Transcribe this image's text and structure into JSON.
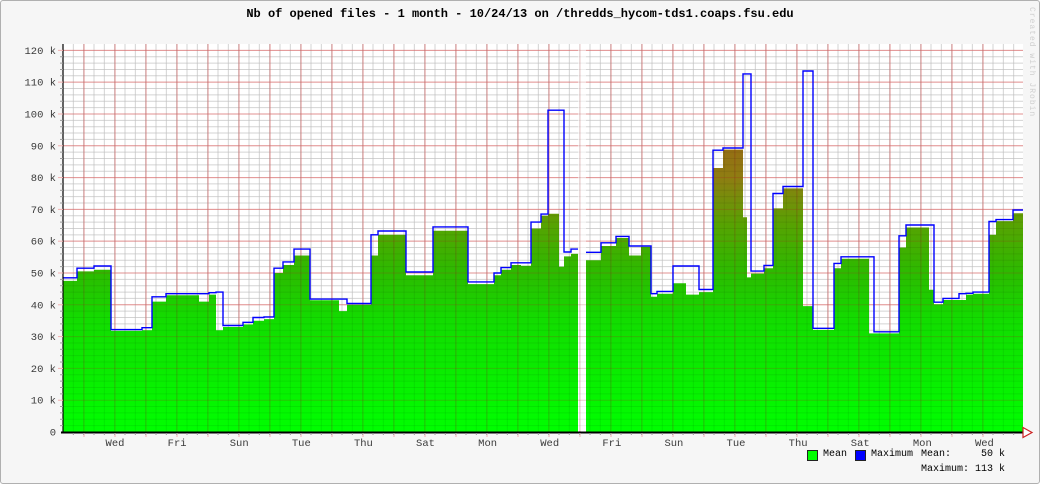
{
  "title": "Nb of opened files - 1 month - 10/24/13 on /thredds_hycom-tds1.coaps.fsu.edu",
  "watermark": "Created with JRobin",
  "legend": {
    "mean_label": "Mean",
    "max_label": "Maximum",
    "mean_caption": "Mean:",
    "mean_value": "50 k",
    "max_caption": "Maximum:",
    "max_value": "113 k"
  },
  "colors": {
    "frame_bg": "#f6f6f6",
    "plot_bg": "#ffffff",
    "minor_grid": "#e4e4e4",
    "major_grid": "#f2b0b0",
    "mean_fill_base": "#00ff00",
    "max_line": "#0000ff",
    "axis": "#000000",
    "arrow": "#cc2222",
    "tick_text": "#3a3a3a"
  },
  "chart_data": {
    "type": "area",
    "title": "Nb of opened files - 1 month - 10/24/13 on /thredds_hycom-tds1.coaps.fsu.edu",
    "xlabel": "",
    "ylabel": "",
    "legend_position": "bottom-right",
    "grid": true,
    "y_axis": {
      "unit": "k files",
      "max_k": 122,
      "major_step_k": 10,
      "minor_step_k": 2,
      "ticks": [
        "0",
        "10 k",
        "20 k",
        "30 k",
        "40 k",
        "50 k",
        "60 k",
        "70 k",
        "80 k",
        "90 k",
        "100 k",
        "110 k",
        "120 k"
      ]
    },
    "x_axis": {
      "span": "1 month (30 days)",
      "labels": [
        "Wed",
        "Fri",
        "Sun",
        "Tue",
        "Thu",
        "Sat",
        "Mon",
        "Wed",
        "Fri",
        "Sun",
        "Tue",
        "Thu",
        "Sat",
        "Mon",
        "Wed"
      ],
      "label_every_days": 2,
      "minor_tick_hours": 8
    },
    "series": [
      {
        "name": "Mean",
        "style": "gradient-area",
        "color": "#00ff00"
      },
      {
        "name": "Maximum",
        "style": "step-line",
        "color": "#0000ff"
      }
    ],
    "summary": {
      "mean_k": 50,
      "maximum_k": 113
    },
    "gradient_stops": [
      [
        122,
        "#9f5f0a"
      ],
      [
        95,
        "#996414"
      ],
      [
        80,
        "#8f7d12"
      ],
      [
        65,
        "#56a302"
      ],
      [
        50,
        "#2cbb00"
      ],
      [
        35,
        "#12dd00"
      ],
      [
        0,
        "#00ff00"
      ]
    ],
    "note_gap": "values unknown (blank column) around day 16",
    "steps": [
      [
        0,
        14,
        47.5,
        48.5
      ],
      [
        14,
        31,
        50.5,
        51.5
      ],
      [
        31,
        48,
        51,
        52.2
      ],
      [
        48,
        79,
        31.8,
        32.2
      ],
      [
        79,
        89,
        32,
        32.8
      ],
      [
        89,
        103,
        41,
        42.5
      ],
      [
        103,
        136,
        43,
        43.5
      ],
      [
        136,
        146,
        41,
        43.5
      ],
      [
        146,
        153,
        43.2,
        43.8
      ],
      [
        153,
        160,
        32,
        44
      ],
      [
        160,
        180,
        33,
        33.5
      ],
      [
        180,
        190,
        33.8,
        34.5
      ],
      [
        190,
        201,
        35,
        36
      ],
      [
        201,
        211,
        35.5,
        36.2
      ],
      [
        211,
        220,
        50,
        51.5
      ],
      [
        220,
        231,
        52.5,
        53.5
      ],
      [
        231,
        247,
        55.5,
        57.5
      ],
      [
        247,
        276,
        41.4,
        41.8
      ],
      [
        276,
        284,
        38,
        41.8
      ],
      [
        284,
        308,
        40,
        40.4
      ],
      [
        308,
        315,
        55.5,
        62
      ],
      [
        315,
        343,
        62,
        63.2
      ],
      [
        343,
        370,
        49.3,
        50.3
      ],
      [
        370,
        405,
        63.3,
        64.5
      ],
      [
        405,
        431,
        46.5,
        47.2
      ],
      [
        431,
        438,
        49.3,
        50
      ],
      [
        438,
        448,
        51,
        51.7
      ],
      [
        448,
        458,
        52.5,
        53.2
      ],
      [
        458,
        468,
        52.3,
        53.2
      ],
      [
        468,
        478,
        64,
        66
      ],
      [
        478,
        485,
        68,
        68.5
      ],
      [
        485,
        496,
        68.6,
        101.2
      ],
      [
        496,
        501,
        52,
        101.2
      ],
      [
        501,
        508,
        55.2,
        56.6
      ],
      [
        508,
        515,
        56,
        57.5
      ],
      [
        515,
        523,
        null,
        null
      ],
      [
        523,
        538,
        54,
        56.5
      ],
      [
        538,
        553,
        58.5,
        59.5
      ],
      [
        553,
        566,
        61,
        61.5
      ],
      [
        566,
        578,
        55.5,
        58.5
      ],
      [
        578,
        588,
        58.2,
        58.5
      ],
      [
        588,
        594,
        42.5,
        43.5
      ],
      [
        594,
        610,
        43.5,
        44.2
      ],
      [
        610,
        623,
        46.8,
        52.2
      ],
      [
        623,
        636,
        43.2,
        52.2
      ],
      [
        636,
        650,
        44,
        44.8
      ],
      [
        650,
        660,
        83,
        88.6
      ],
      [
        660,
        680,
        88.8,
        89.3
      ],
      [
        680,
        684,
        67.5,
        112.6
      ],
      [
        684,
        688,
        48.6,
        112.6
      ],
      [
        688,
        701,
        49.8,
        50.6
      ],
      [
        701,
        710,
        51.5,
        52.4
      ],
      [
        710,
        720,
        70.3,
        75
      ],
      [
        720,
        740,
        76.6,
        77.2
      ],
      [
        740,
        750,
        39.6,
        113.5
      ],
      [
        750,
        771,
        32.1,
        32.6
      ],
      [
        771,
        778,
        51.5,
        53
      ],
      [
        778,
        806,
        54.5,
        55.1
      ],
      [
        806,
        811,
        31,
        55.1
      ],
      [
        811,
        836,
        31,
        31.5
      ],
      [
        836,
        843,
        58,
        61.7
      ],
      [
        843,
        866,
        64.3,
        65.1
      ],
      [
        866,
        871,
        44.7,
        65.1
      ],
      [
        871,
        880,
        40.2,
        40.8
      ],
      [
        880,
        896,
        41.5,
        42
      ],
      [
        896,
        903,
        41.5,
        43.5
      ],
      [
        903,
        910,
        43.2,
        43.6
      ],
      [
        910,
        926,
        43.5,
        44
      ],
      [
        926,
        933,
        62,
        66.2
      ],
      [
        933,
        950,
        66.3,
        66.8
      ],
      [
        950,
        960,
        68.8,
        69.8
      ]
    ]
  }
}
